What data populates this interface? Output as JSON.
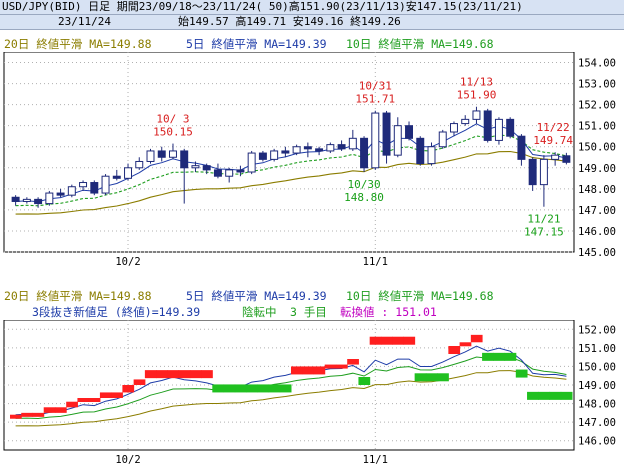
{
  "header": {
    "symbol_line": "USD/JPY(BID) 日足 期間23/09/18～23/11/24( 50)高151.90(23/11/13)安147.15(23/11/21)",
    "date_line": "23/11/24",
    "ohlc_line": "始149.57 高149.71 安149.16 終149.26"
  },
  "ma_legend": {
    "ma20": "20日 終値平滑 MA=149.88",
    "ma5": "5日 終値平滑 MA=149.39",
    "ma10": "10日 終値平滑 MA=149.68"
  },
  "renko_info": {
    "line": "3段抜き新値足 (終値)=149.39",
    "trend": "陰転中",
    "count": "3 手目",
    "turn": "転換値 : 151.01"
  },
  "colors": {
    "ma20": "#8b7d00",
    "ma5": "#1e3ca8",
    "ma10": "#1f9e1f",
    "candle_up": "#ffffff",
    "candle_down": "#1f2a7a",
    "renko_up": "#ff1f1f",
    "renko_down": "#20c020",
    "high_label": "#d81e1e",
    "low_label": "#18a018",
    "header_bg": "#d7e2f3"
  },
  "chart_data": [
    {
      "type": "candlestick",
      "x_ticks": [
        "10/2",
        "11/1"
      ],
      "y_ticks": [
        "154.00",
        "153.00",
        "152.00",
        "151.00",
        "150.00",
        "149.00",
        "148.00",
        "147.00",
        "146.00",
        "145.00"
      ],
      "ylim": [
        145,
        154.5
      ],
      "annotations": [
        {
          "date": "10/ 3",
          "value": "150.15",
          "kind": "high"
        },
        {
          "date": "10/31",
          "value": "151.71",
          "kind": "high"
        },
        {
          "date": "11/13",
          "value": "151.90",
          "kind": "high"
        },
        {
          "date": "11/22",
          "value": "149.74",
          "kind": "high"
        },
        {
          "date": "10/30",
          "value": "148.80",
          "kind": "low"
        },
        {
          "date": "11/21",
          "value": "147.15",
          "kind": "low"
        }
      ],
      "candles": [
        [
          147.6,
          147.7,
          147.2,
          147.4
        ],
        [
          147.4,
          147.6,
          147.3,
          147.5
        ],
        [
          147.5,
          147.6,
          147.1,
          147.3
        ],
        [
          147.3,
          147.9,
          147.2,
          147.8
        ],
        [
          147.8,
          148.0,
          147.6,
          147.7
        ],
        [
          147.7,
          148.2,
          147.6,
          148.1
        ],
        [
          148.1,
          148.4,
          147.9,
          148.3
        ],
        [
          148.3,
          148.4,
          147.7,
          147.8
        ],
        [
          147.8,
          148.7,
          147.7,
          148.6
        ],
        [
          148.6,
          148.9,
          148.4,
          148.5
        ],
        [
          148.5,
          149.2,
          148.4,
          149.0
        ],
        [
          149.0,
          149.5,
          148.9,
          149.3
        ],
        [
          149.3,
          149.9,
          149.2,
          149.8
        ],
        [
          149.8,
          150.0,
          149.3,
          149.5
        ],
        [
          149.5,
          150.15,
          149.4,
          149.8
        ],
        [
          149.8,
          149.9,
          147.3,
          149.0
        ],
        [
          149.0,
          149.3,
          148.8,
          149.1
        ],
        [
          149.1,
          149.2,
          148.7,
          148.9
        ],
        [
          148.9,
          149.2,
          148.5,
          148.6
        ],
        [
          148.6,
          149.0,
          148.3,
          148.9
        ],
        [
          148.9,
          149.1,
          148.6,
          148.8
        ],
        [
          148.8,
          149.8,
          148.7,
          149.7
        ],
        [
          149.7,
          149.8,
          149.3,
          149.4
        ],
        [
          149.4,
          149.9,
          149.3,
          149.8
        ],
        [
          149.8,
          150.0,
          149.5,
          149.7
        ],
        [
          149.7,
          150.1,
          149.6,
          150.0
        ],
        [
          150.0,
          150.2,
          149.5,
          149.9
        ],
        [
          149.9,
          150.0,
          149.6,
          149.8
        ],
        [
          149.8,
          150.2,
          149.7,
          150.1
        ],
        [
          150.1,
          150.3,
          149.8,
          149.9
        ],
        [
          149.9,
          150.8,
          149.8,
          150.4
        ],
        [
          150.4,
          150.5,
          148.8,
          149.0
        ],
        [
          149.0,
          151.71,
          148.9,
          151.6
        ],
        [
          151.6,
          151.7,
          149.2,
          149.6
        ],
        [
          149.6,
          151.4,
          149.5,
          151.0
        ],
        [
          151.0,
          151.2,
          150.3,
          150.4
        ],
        [
          150.4,
          150.5,
          149.1,
          149.2
        ],
        [
          149.2,
          150.2,
          149.1,
          150.0
        ],
        [
          150.0,
          150.8,
          149.9,
          150.7
        ],
        [
          150.7,
          151.2,
          150.5,
          151.1
        ],
        [
          151.1,
          151.5,
          151.0,
          151.3
        ],
        [
          151.3,
          151.9,
          151.1,
          151.7
        ],
        [
          151.7,
          151.8,
          150.2,
          150.3
        ],
        [
          150.3,
          151.4,
          150.1,
          151.3
        ],
        [
          151.3,
          151.4,
          150.4,
          150.5
        ],
        [
          150.5,
          150.6,
          149.1,
          149.4
        ],
        [
          149.4,
          149.5,
          147.9,
          148.2
        ],
        [
          148.2,
          149.6,
          147.15,
          149.4
        ],
        [
          149.4,
          149.74,
          149.1,
          149.6
        ],
        [
          149.57,
          149.71,
          149.16,
          149.26
        ]
      ]
    },
    {
      "type": "renko",
      "x_ticks": [
        "10/2",
        "11/1"
      ],
      "y_ticks": [
        "152.00",
        "151.00",
        "150.00",
        "149.00",
        "148.00",
        "147.00",
        "146.00"
      ],
      "ylim": [
        145.5,
        152.5
      ]
    }
  ]
}
